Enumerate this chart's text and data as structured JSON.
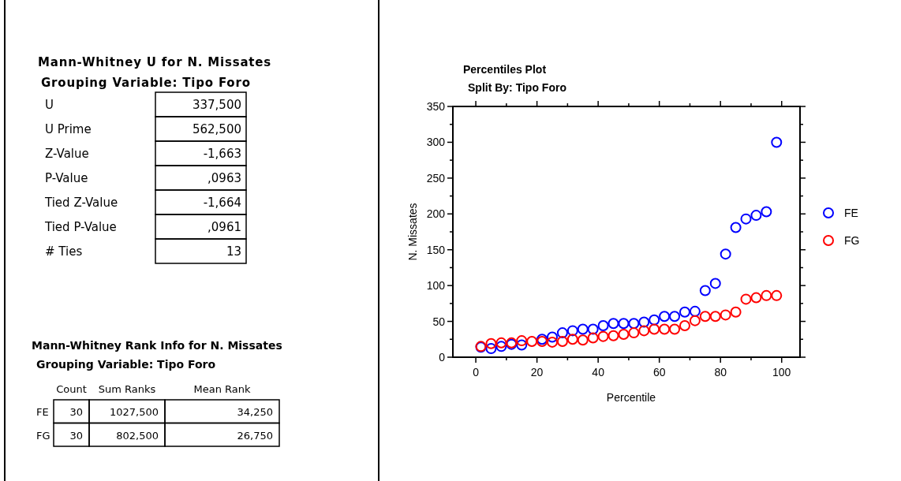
{
  "chart_data": [
    {
      "type": "other",
      "title": "Mann-Whitney U for N. Missates",
      "subtitle": "Grouping Variable: Tipo Foro",
      "categories": [
        "U",
        "U Prime",
        "Z-Value",
        "P-Value",
        "Tied Z-Value",
        "Tied P-Value",
        "# Ties"
      ],
      "annotations": [
        "337,500",
        "562,500",
        "-1,663",
        ",0963",
        "-1,664",
        ",0961",
        "13"
      ]
    },
    {
      "type": "other",
      "title": "Mann-Whitney Rank Info for N. Missates",
      "subtitle": "Grouping Variable: Tipo Foro",
      "categories": [
        "Count",
        "Sum Ranks",
        "Mean Rank"
      ],
      "y_categories": [
        "FE",
        "FG"
      ],
      "annotations": [
        "30",
        "1027,500",
        "34,250",
        "30",
        "802,500",
        "26,750"
      ]
    },
    {
      "type": "scatter",
      "title": "Percentiles Plot",
      "subtitle": "Split By: Tipo Foro",
      "xlabel": "Percentile",
      "ylabel": "N. Missates",
      "x": [
        1.667,
        5,
        8.333,
        11.667,
        15,
        18.333,
        21.667,
        25,
        28.333,
        31.667,
        35,
        38.333,
        41.667,
        45,
        48.333,
        51.667,
        55,
        58.333,
        61.667,
        65,
        68.333,
        71.667,
        75,
        78.333,
        81.667,
        85,
        88.333,
        91.667,
        95,
        98.333
      ],
      "series": [
        {
          "name": "FE",
          "color": "#0000ff",
          "values": [
            14,
            12,
            15,
            18,
            17,
            null,
            25,
            28,
            34,
            37,
            39,
            39,
            44,
            47,
            47,
            47,
            49,
            52,
            57,
            57,
            63,
            64,
            93,
            103,
            144,
            181,
            193,
            198,
            203,
            300
          ]
        },
        {
          "name": "FG",
          "color": "#ff0000",
          "values": [
            15,
            19,
            20,
            20,
            23,
            22,
            22,
            21,
            22,
            25,
            24,
            27,
            29,
            30,
            32,
            34,
            37,
            39,
            39,
            39,
            44,
            51,
            57,
            57,
            59,
            63,
            81,
            83,
            86,
            86
          ]
        }
      ],
      "xlim": [
        -7.5,
        106
      ],
      "ylim": [
        0,
        350
      ],
      "xticks": [
        0,
        {
          "value": 10,
          "label": null
        },
        20,
        {
          "value": 30,
          "label": null
        },
        40,
        {
          "value": 50,
          "label": null
        },
        60,
        {
          "value": 70,
          "label": null
        },
        80,
        {
          "value": 90,
          "label": null
        },
        100
      ],
      "yticks": [
        0,
        {
          "value": 25,
          "label": null
        },
        50,
        {
          "value": 75,
          "label": null
        },
        100,
        {
          "value": 125,
          "label": null
        },
        150,
        {
          "value": 175,
          "label": null
        },
        200,
        {
          "value": 225,
          "label": null
        },
        250,
        {
          "value": 275,
          "label": null
        },
        300,
        {
          "value": 325,
          "label": null
        },
        350
      ],
      "marker": "circle",
      "legend": "right",
      "grid": false
    }
  ]
}
